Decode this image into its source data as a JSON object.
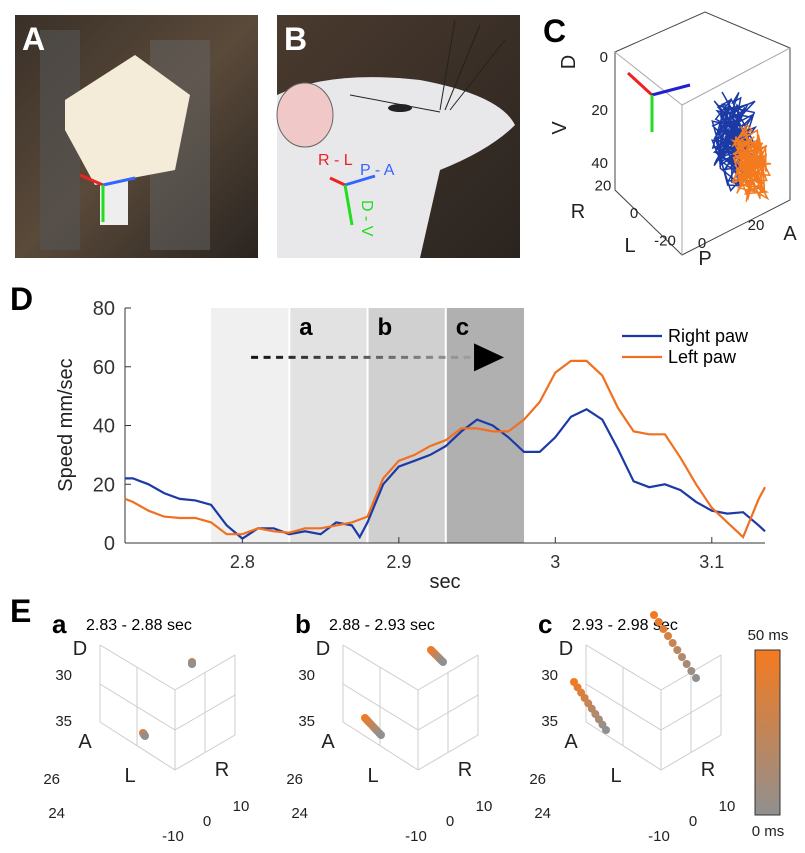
{
  "panel_labels": [
    "A",
    "B",
    "C",
    "D",
    "E"
  ],
  "photo_b_labels": [
    "R - L",
    "P - A",
    "D - V"
  ],
  "panel_c": {
    "axis_labels": [
      "D",
      "V",
      "R",
      "L",
      "P",
      "A"
    ],
    "v_ticks": [
      0,
      20,
      40
    ],
    "rl_ticks": [
      20,
      0,
      -20
    ],
    "pa_ticks": [
      0,
      20
    ]
  },
  "chart_data": {
    "type": "line",
    "ylabel": "Speed mm/sec",
    "xlabel": "sec",
    "x": [
      2.725,
      2.73,
      2.74,
      2.75,
      2.76,
      2.77,
      2.78,
      2.79,
      2.8,
      2.81,
      2.82,
      2.83,
      2.84,
      2.85,
      2.86,
      2.87,
      2.875,
      2.88,
      2.89,
      2.9,
      2.91,
      2.92,
      2.93,
      2.94,
      2.95,
      2.96,
      2.97,
      2.98,
      2.99,
      3.0,
      3.01,
      3.02,
      3.03,
      3.04,
      3.05,
      3.06,
      3.07,
      3.08,
      3.09,
      3.1,
      3.11,
      3.12,
      3.13,
      3.134
    ],
    "series": [
      {
        "name": "Right paw",
        "color": "#1b3aa6",
        "values": [
          22,
          22,
          20,
          17,
          15,
          14.5,
          13,
          6,
          1.5,
          5,
          5,
          3,
          4,
          3,
          7,
          6,
          2,
          7,
          20,
          26,
          28,
          30,
          33,
          38,
          42,
          40,
          36,
          31,
          31,
          36,
          43,
          45.5,
          42,
          32,
          21,
          19,
          20,
          18,
          14,
          11,
          10,
          10.5,
          6,
          4
        ]
      },
      {
        "name": "Left paw",
        "color": "#f07020",
        "values": [
          15,
          14,
          11,
          9,
          8.5,
          8.5,
          7,
          3,
          3,
          5,
          4,
          3.5,
          5,
          5,
          6,
          7,
          8,
          9,
          22,
          28,
          30,
          33,
          35,
          39,
          39,
          38,
          38,
          42,
          48,
          58,
          62,
          62,
          57,
          46,
          38,
          37,
          37,
          29,
          20,
          12,
          7,
          2,
          15,
          19
        ]
      }
    ],
    "xlim": [
      2.725,
      3.134
    ],
    "ylim": [
      0,
      80
    ],
    "xticks": [
      2.8,
      2.9,
      3,
      3.1
    ],
    "yticks": [
      0,
      20,
      40,
      60,
      80
    ],
    "regions": [
      {
        "range": [
          2.78,
          2.83
        ]
      },
      {
        "label": "a",
        "range": [
          2.83,
          2.88
        ]
      },
      {
        "label": "b",
        "range": [
          2.88,
          2.93
        ]
      },
      {
        "label": "c",
        "range": [
          2.93,
          2.98
        ]
      }
    ]
  },
  "panel_e": {
    "plots": [
      {
        "letter": "a",
        "range": "2.83 - 2.88 sec"
      },
      {
        "letter": "b",
        "range": "2.88 - 2.93 sec"
      },
      {
        "letter": "c",
        "range": "2.93 - 2.98 sec"
      }
    ],
    "axis_labels": [
      "D",
      "A",
      "L",
      "R"
    ],
    "z_ticks": [
      30,
      35
    ],
    "y_ticks": [
      26,
      24
    ],
    "x_ticks": [
      10,
      0,
      -10
    ],
    "colorbar": {
      "top": "50 ms",
      "bottom": "0 ms"
    }
  }
}
